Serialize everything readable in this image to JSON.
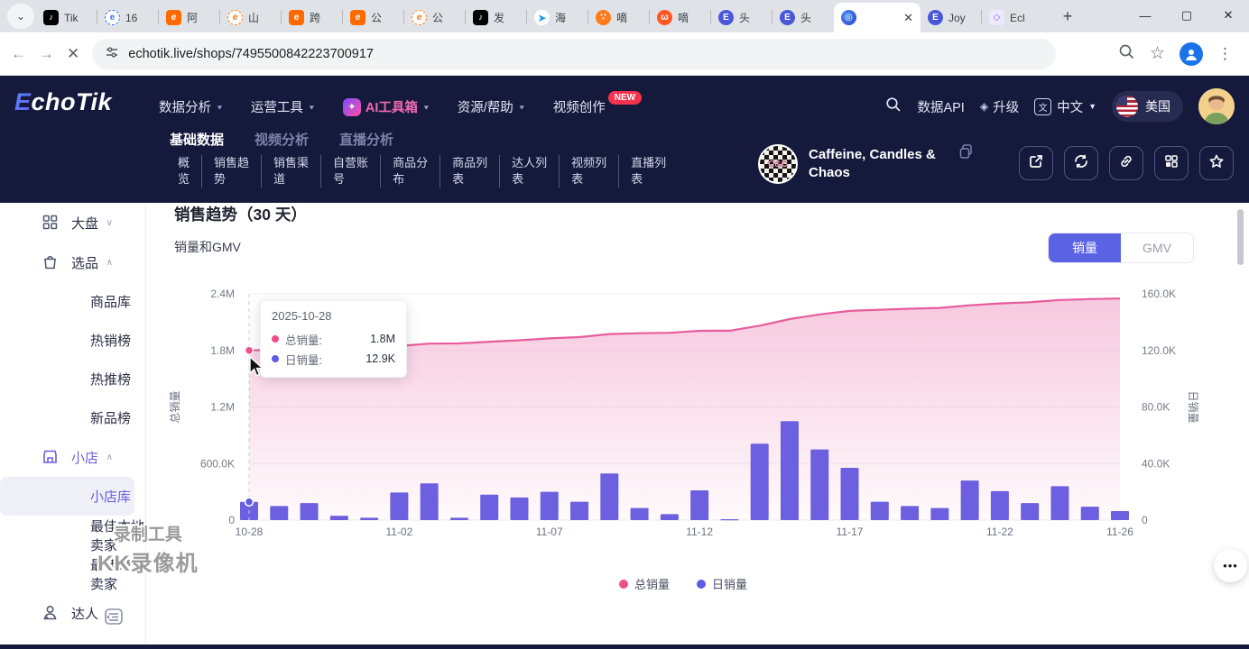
{
  "browser": {
    "tab_overflow_glyph": "⌄",
    "tabs": [
      {
        "icon": "tiktok-icon",
        "label": "Tik"
      },
      {
        "icon": "site-blue-dashed-icon",
        "label": "16"
      },
      {
        "icon": "site-orange-icon",
        "label": "阿"
      },
      {
        "icon": "site-orange-dashed-icon",
        "label": "山"
      },
      {
        "icon": "site-orange-icon",
        "label": "跨"
      },
      {
        "icon": "site-orange-icon",
        "label": "公"
      },
      {
        "icon": "site-orange-dashed-icon",
        "label": "公"
      },
      {
        "icon": "tiktok-icon",
        "label": "发"
      },
      {
        "icon": "site-bluebird-icon",
        "label": "海"
      },
      {
        "icon": "site-paw-icon",
        "label": "嘀"
      },
      {
        "icon": "site-fox-icon",
        "label": "嘀"
      },
      {
        "icon": "toutiao-icon",
        "label": "头"
      },
      {
        "icon": "toutiao-icon",
        "label": "头"
      },
      {
        "icon": "echotik-favicon",
        "label": "",
        "active": true
      },
      {
        "icon": "toutiao-icon",
        "label": "Joy"
      },
      {
        "icon": "site-purple-icon",
        "label": "Ecl"
      }
    ],
    "new_tab_glyph": "+",
    "url": "echotik.live/shops/7495500842223700917"
  },
  "header": {
    "logo_first": "E",
    "logo_rest": "choTik",
    "nav": [
      {
        "label": "数据分析",
        "caret": true
      },
      {
        "label": "运营工具",
        "caret": true
      },
      {
        "label": "AI工具箱",
        "caret": true,
        "highlight": true
      },
      {
        "label": "资源/帮助",
        "caret": true
      },
      {
        "label": "视频创作",
        "badge": "NEW"
      }
    ],
    "right": {
      "api": "数据API",
      "upgrade": "升级",
      "language": "中文",
      "region": "美国"
    }
  },
  "subnav": {
    "tabs": [
      {
        "label": "基础数据",
        "active": true
      },
      {
        "label": "视频分析",
        "active": false
      },
      {
        "label": "直播分析",
        "active": false
      }
    ],
    "sections": [
      {
        "lines": [
          "概",
          "览"
        ]
      },
      {
        "lines": [
          "销售趋",
          "势"
        ]
      },
      {
        "lines": [
          "销售渠",
          "道"
        ]
      },
      {
        "lines": [
          "自营账",
          "号"
        ]
      },
      {
        "lines": [
          "商品分",
          "布"
        ]
      },
      {
        "lines": [
          "商品列",
          "表"
        ]
      },
      {
        "lines": [
          "达人列",
          "表"
        ]
      },
      {
        "lines": [
          "视频列",
          "表"
        ]
      },
      {
        "lines": [
          "直播列",
          "表"
        ]
      }
    ]
  },
  "shop": {
    "name_line1": "Caffeine, Candles &",
    "name_line2": "Chaos",
    "action_icons": [
      "export-icon",
      "sync-icon",
      "link-icon",
      "grid-apps-icon",
      "star-icon"
    ]
  },
  "sidebar": {
    "groups": [
      {
        "icon": "grid-icon",
        "label": "大盘",
        "chevron": "down",
        "children": []
      },
      {
        "icon": "bag-icon",
        "label": "选品",
        "chevron": "up",
        "children": [
          {
            "label": "商品库"
          },
          {
            "label": "热销榜"
          },
          {
            "label": "热推榜"
          },
          {
            "label": "新品榜"
          }
        ]
      },
      {
        "icon": "store-icon",
        "label": "小店",
        "chevron": "up",
        "active": true,
        "children": [
          {
            "label": "小店库",
            "selected": true
          },
          {
            "label": "最佳本地卖家"
          },
          {
            "label": "最佳跨境卖家"
          }
        ]
      },
      {
        "icon": "person-icon",
        "label": "达人",
        "children": []
      }
    ]
  },
  "main": {
    "title": "销售趋势（30 天）",
    "subtitle": "销量和GMV",
    "toggle": [
      {
        "label": "销量",
        "active": true
      },
      {
        "label": "GMV",
        "active": false
      }
    ],
    "tooltip": {
      "date": "2025-10-28",
      "rows": [
        {
          "label": "总销量:",
          "value": "1.8M",
          "color": "#ee4e8b"
        },
        {
          "label": "日销量:",
          "value": "12.9K",
          "color": "#5f5ce0"
        }
      ]
    }
  },
  "chart_data": {
    "type": "combo line+bar, dual axis",
    "title": "销售趋势（30 天）",
    "subtitle": "销量和GMV",
    "x": [
      "10-28",
      "10-29",
      "10-30",
      "10-31",
      "11-01",
      "11-02",
      "11-03",
      "11-04",
      "11-05",
      "11-06",
      "11-07",
      "11-08",
      "11-09",
      "11-10",
      "11-11",
      "11-12",
      "11-13",
      "11-14",
      "11-15",
      "11-16",
      "11-17",
      "11-18",
      "11-19",
      "11-20",
      "11-21",
      "11-22",
      "11-23",
      "11-24",
      "11-25",
      "11-26"
    ],
    "x_tick_labels": [
      "10-28",
      "11-02",
      "11-07",
      "11-12",
      "11-17",
      "11-22",
      "11-26"
    ],
    "series": [
      {
        "name": "总销量",
        "type": "line",
        "axis": "left",
        "color": "#e75d9c",
        "values": [
          1800000,
          1810000,
          1822000,
          1825000,
          1827000,
          1846000,
          1872000,
          1874000,
          1892000,
          1908000,
          1928000,
          1941000,
          1974000,
          1982000,
          1987000,
          2008000,
          2008600,
          2062000,
          2132000,
          2182000,
          2219000,
          2232000,
          2242000,
          2251000,
          2279000,
          2299000,
          2311000,
          2335000,
          2345000,
          2351000
        ]
      },
      {
        "name": "日销量",
        "type": "bar",
        "axis": "right",
        "color": "#6c5fe0",
        "values": [
          12900,
          10000,
          12000,
          3000,
          1700,
          19500,
          26000,
          1700,
          18000,
          16000,
          20000,
          13000,
          33000,
          8500,
          4200,
          21000,
          600,
          54000,
          70000,
          50000,
          37000,
          13000,
          10000,
          8500,
          28000,
          20500,
          12000,
          24000,
          9500,
          6400
        ]
      }
    ],
    "left_axis": {
      "label": "总销量",
      "max": 2400000,
      "ticks": [
        "0",
        "600.0K",
        "1.2M",
        "1.8M",
        "2.4M"
      ]
    },
    "right_axis": {
      "label": "日销量",
      "max": 160000,
      "ticks": [
        "0",
        "40.0K",
        "80.0K",
        "120.0K",
        "160.0K"
      ]
    },
    "legend": [
      "总销量",
      "日销量"
    ],
    "grid": true,
    "legend_position": "bottom-center",
    "highlighted_point": {
      "x": "2025-10-28",
      "总销量": "1.8M",
      "日销量": "12.9K"
    }
  },
  "watermark": {
    "line1": "录制工具",
    "line2": "KK录像机"
  },
  "floating": {
    "more_glyph": "•••"
  }
}
